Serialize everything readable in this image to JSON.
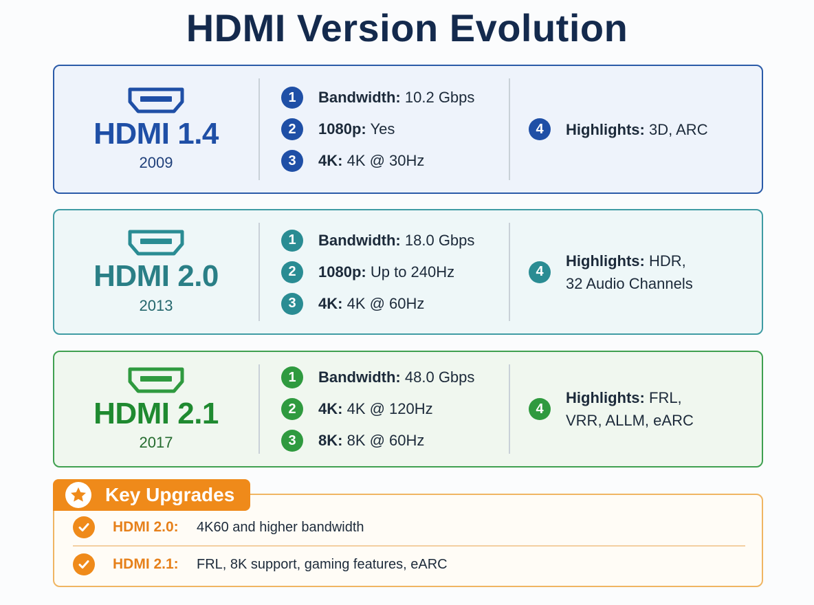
{
  "title": "HDMI Version Evolution",
  "colors": {
    "v14": "#1f4fa6",
    "v20": "#2a8c93",
    "v21": "#2f9a3f",
    "accent": "#ef8a1a"
  },
  "versions": [
    {
      "name": "HDMI 1.4",
      "year": "2009",
      "icon": "hdmi-port-icon",
      "specs": [
        {
          "num": "1",
          "label": "Bandwidth:",
          "value": "10.2 Gbps"
        },
        {
          "num": "2",
          "label": "1080p:",
          "value": "Yes"
        },
        {
          "num": "3",
          "label": "4K:",
          "value": "4K @ 30Hz"
        }
      ],
      "highlight": {
        "num": "4",
        "label": "Highlights:",
        "line1": "3D, ARC",
        "line2": ""
      }
    },
    {
      "name": "HDMI 2.0",
      "year": "2013",
      "icon": "hdmi-port-icon",
      "specs": [
        {
          "num": "1",
          "label": "Bandwidth:",
          "value": "18.0 Gbps"
        },
        {
          "num": "2",
          "label": "1080p:",
          "value": "Up to 240Hz"
        },
        {
          "num": "3",
          "label": "4K:",
          "value": "4K @ 60Hz"
        }
      ],
      "highlight": {
        "num": "4",
        "label": "Highlights:",
        "line1": "HDR,",
        "line2": "32 Audio Channels"
      }
    },
    {
      "name": "HDMI 2.1",
      "year": "2017",
      "icon": "hdmi-port-icon",
      "specs": [
        {
          "num": "1",
          "label": "Bandwidth:",
          "value": "48.0 Gbps"
        },
        {
          "num": "2",
          "label": "4K:",
          "value": "4K @ 120Hz"
        },
        {
          "num": "3",
          "label": "8K:",
          "value": "8K @ 60Hz"
        }
      ],
      "highlight": {
        "num": "4",
        "label": "Highlights:",
        "line1": "FRL,",
        "line2": "VRR, ALLM, eARC"
      }
    }
  ],
  "key_upgrades": {
    "title": "Key Upgrades",
    "icon": "star-icon",
    "items": [
      {
        "name": "HDMI 2.0:",
        "desc": "4K60 and higher bandwidth",
        "icon": "check-icon"
      },
      {
        "name": "HDMI 2.1:",
        "desc": "FRL, 8K support, gaming features, eARC",
        "icon": "check-icon"
      }
    ]
  }
}
